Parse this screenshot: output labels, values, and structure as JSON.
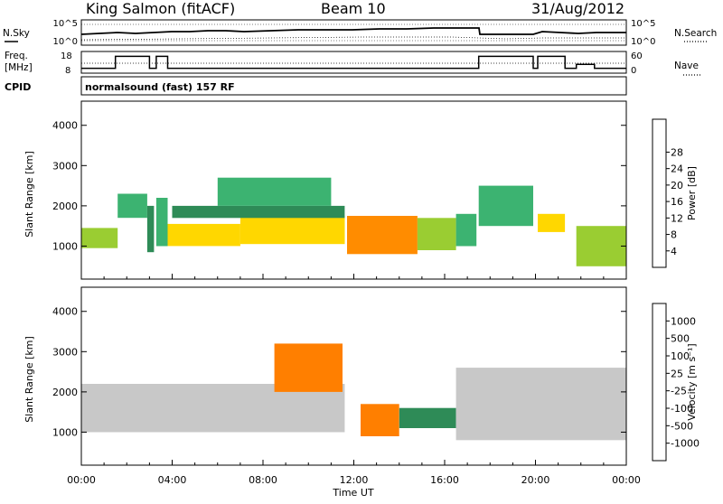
{
  "header": {
    "station": "King Salmon (fitACF)",
    "beam": "Beam 10",
    "date": "31/Aug/2012"
  },
  "top_panels": {
    "noise_left_label": "N.Sky",
    "noise_right_label": "N.Search",
    "noise_ticks": [
      "10^5",
      "10^0"
    ],
    "freq_left_label_line1": "Freq.",
    "freq_left_label_line2": "[MHz]",
    "freq_ticks": [
      "18",
      "8"
    ],
    "nave_label": "Nave",
    "nave_ticks": [
      "60",
      "0"
    ],
    "cpid_label": "CPID",
    "cpid_value": "normalsound (fast) 157 RF"
  },
  "time_ticks": [
    "00:00",
    "04:00",
    "08:00",
    "12:00",
    "16:00",
    "20:00",
    "00:00"
  ],
  "time_axis_label": "Time UT",
  "range_ticks": [
    "1000",
    "2000",
    "3000",
    "4000"
  ],
  "range_axis_label": "Slant Range [km]",
  "power_scale": {
    "label": "Power [dB]",
    "ticks": [
      "4",
      "8",
      "12",
      "16",
      "20",
      "24",
      "28"
    ],
    "colors": [
      "#0000ff",
      "#1f4fb4",
      "#2e8b57",
      "#3cb371",
      "#9acd32",
      "#ffd700",
      "#ff8c00",
      "#ff4500",
      "#ff0000"
    ]
  },
  "velocity_scale": {
    "label": "Velocity [m s⁻¹]",
    "ticks": [
      "1000",
      "500",
      "100",
      "25",
      "-25",
      "-100",
      "-500",
      "-1000"
    ],
    "colors": [
      "#0000ff",
      "#2060c0",
      "#2e8b57",
      "#66cc33",
      "#c8c8c8",
      "#ffb000",
      "#ff7f00",
      "#ff3300",
      "#ff0000"
    ]
  },
  "chart_data": {
    "type": "heatmap",
    "title": "King Salmon (fitACF) Beam 10 31/Aug/2012",
    "xlabel": "Time UT",
    "ylabel": "Slant Range [km]",
    "xlim_hours": [
      0,
      24
    ],
    "ylim_km": [
      180,
      4600
    ],
    "panels": [
      "Power [dB]",
      "Velocity [m s⁻¹]"
    ],
    "frequency_steps": [
      {
        "t0": 0,
        "t1": 1.5,
        "mhz": 10
      },
      {
        "t0": 1.5,
        "t1": 3.0,
        "mhz": 16
      },
      {
        "t0": 3.0,
        "t1": 3.3,
        "mhz": 10
      },
      {
        "t0": 3.3,
        "t1": 3.8,
        "mhz": 16
      },
      {
        "t0": 3.8,
        "t1": 17.5,
        "mhz": 10
      },
      {
        "t0": 17.5,
        "t1": 19.9,
        "mhz": 16
      },
      {
        "t0": 19.9,
        "t1": 20.1,
        "mhz": 10
      },
      {
        "t0": 20.1,
        "t1": 21.3,
        "mhz": 16
      },
      {
        "t0": 21.3,
        "t1": 21.8,
        "mhz": 10
      },
      {
        "t0": 21.8,
        "t1": 22.6,
        "mhz": 12
      },
      {
        "t0": 22.6,
        "t1": 24,
        "mhz": 10
      }
    ],
    "power_regions": [
      {
        "t0": 0.0,
        "t1": 1.6,
        "r0": 950,
        "r1": 1450,
        "db": 18
      },
      {
        "t0": 1.6,
        "t1": 2.9,
        "r0": 1700,
        "r1": 2300,
        "db": 14
      },
      {
        "t0": 2.9,
        "t1": 3.2,
        "r0": 850,
        "r1": 2000,
        "db": 10
      },
      {
        "t0": 3.3,
        "t1": 3.8,
        "r0": 1000,
        "r1": 2200,
        "db": 13
      },
      {
        "t0": 3.8,
        "t1": 7.0,
        "r0": 1000,
        "r1": 1550,
        "db": 20
      },
      {
        "t0": 7.0,
        "t1": 11.6,
        "r0": 1050,
        "r1": 1750,
        "db": 22
      },
      {
        "t0": 4.0,
        "t1": 11.6,
        "r0": 1700,
        "r1": 2000,
        "db": 10
      },
      {
        "t0": 6.0,
        "t1": 11.0,
        "r0": 2000,
        "r1": 2700,
        "db": 15
      },
      {
        "t0": 11.7,
        "t1": 14.8,
        "r0": 800,
        "r1": 1750,
        "db": 26
      },
      {
        "t0": 14.8,
        "t1": 16.5,
        "r0": 900,
        "r1": 1700,
        "db": 16
      },
      {
        "t0": 16.5,
        "t1": 17.4,
        "r0": 1000,
        "r1": 1800,
        "db": 12
      },
      {
        "t0": 17.5,
        "t1": 19.9,
        "r0": 1500,
        "r1": 2500,
        "db": 13
      },
      {
        "t0": 20.1,
        "t1": 21.3,
        "r0": 1350,
        "r1": 1800,
        "db": 20
      },
      {
        "t0": 21.8,
        "t1": 24.0,
        "r0": 500,
        "r1": 1500,
        "db": 17
      }
    ],
    "velocity_regions": [
      {
        "t0": 0.0,
        "t1": 11.6,
        "r0": 1000,
        "r1": 2200,
        "vel": 0
      },
      {
        "t0": 8.5,
        "t1": 11.5,
        "r0": 2000,
        "r1": 3200,
        "vel": -200
      },
      {
        "t0": 12.3,
        "t1": 14.0,
        "r0": 900,
        "r1": 1700,
        "vel": -150
      },
      {
        "t0": 14.0,
        "t1": 16.5,
        "r0": 1100,
        "r1": 1600,
        "vel": 60
      },
      {
        "t0": 16.5,
        "t1": 24.0,
        "r0": 800,
        "r1": 2600,
        "vel": 0
      }
    ]
  }
}
